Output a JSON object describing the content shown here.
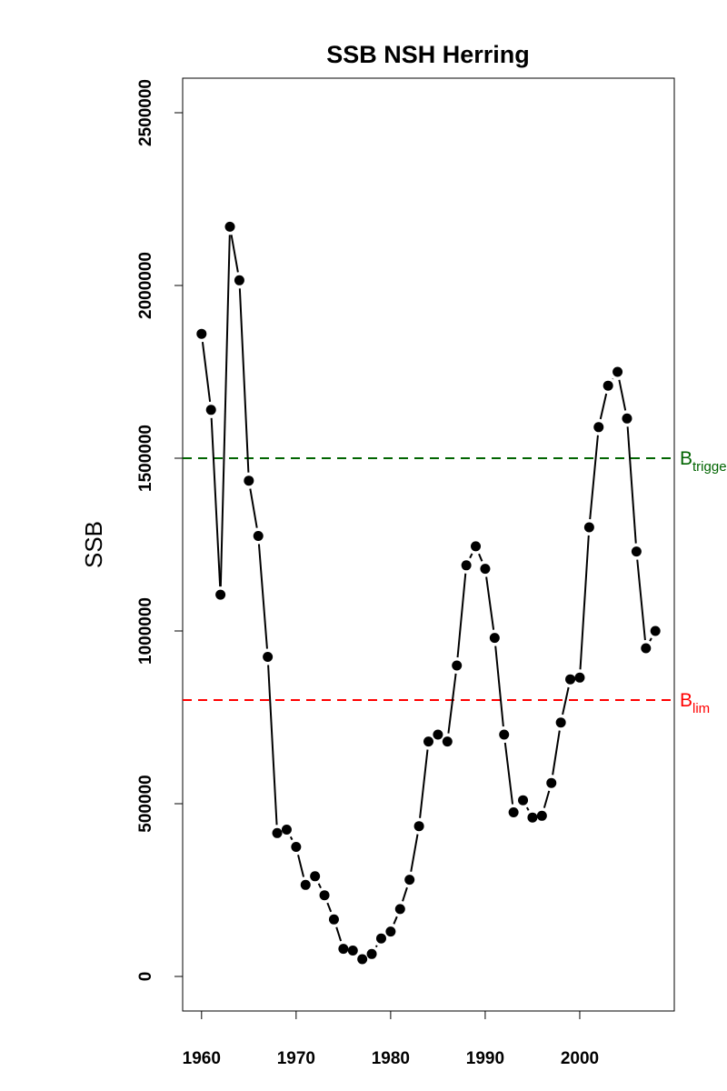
{
  "chart_data": {
    "type": "line",
    "title": "SSB NSH Herring",
    "xlabel": "",
    "ylabel": "SSB",
    "xlim": [
      1958,
      2010
    ],
    "ylim": [
      -100000,
      2600000
    ],
    "x_ticks": [
      1960,
      1970,
      1980,
      1990,
      2000
    ],
    "y_ticks": [
      0,
      500000,
      1000000,
      1500000,
      2000000,
      2500000
    ],
    "grid": false,
    "series": [
      {
        "x": [
          1960,
          1961,
          1962,
          1963,
          1964,
          1965,
          1966,
          1967,
          1968,
          1969,
          1970,
          1971,
          1972,
          1973,
          1974,
          1975,
          1976,
          1977,
          1978,
          1979,
          1980,
          1981,
          1982,
          1983,
          1984,
          1985,
          1986,
          1987,
          1988,
          1989,
          1990,
          1991,
          1992,
          1993,
          1994,
          1995,
          1996,
          1997,
          1998,
          1999,
          2000,
          2001,
          2002,
          2003,
          2004,
          2005,
          2006,
          2007,
          2008
        ],
        "values": [
          1860000,
          1640000,
          1105000,
          2170000,
          2015000,
          1435000,
          1275000,
          925000,
          415000,
          425000,
          375000,
          265000,
          290000,
          235000,
          165000,
          80000,
          75000,
          50000,
          65000,
          110000,
          130000,
          195000,
          280000,
          435000,
          680000,
          700000,
          680000,
          900000,
          1190000,
          1245000,
          1180000,
          980000,
          700000,
          475000,
          510000,
          460000,
          465000,
          560000,
          735000,
          860000,
          865000,
          1300000,
          1590000,
          1710000,
          1750000,
          1615000,
          1230000,
          950000,
          1000000
        ],
        "color": "#000000"
      }
    ],
    "reference_lines": [
      {
        "base": "B",
        "sub": "trigger",
        "value": 1500000,
        "color": "#006400"
      },
      {
        "base": "B",
        "sub": "lim",
        "value": 800000,
        "color": "#ff0000"
      }
    ]
  }
}
